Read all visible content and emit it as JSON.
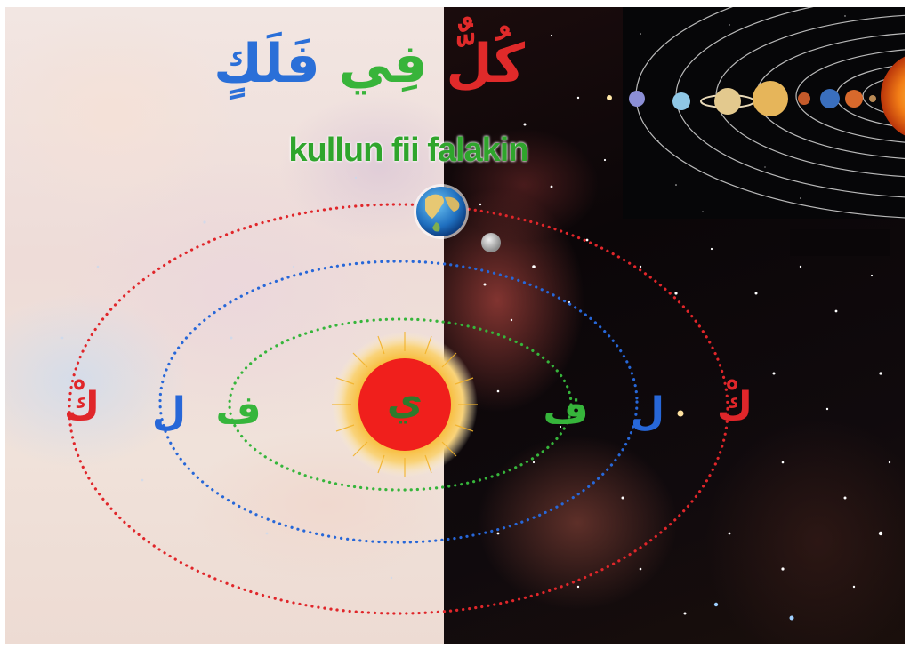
{
  "title_arabic": {
    "word_kul": "كُلٌّ",
    "word_fi": "فِي",
    "word_falak": "فَلَكٍ"
  },
  "title_latin": "kullun fii falakin",
  "orbit_letters": {
    "left_outer": "كْ",
    "left_middle": "ل",
    "left_inner": "ف",
    "center": "ي",
    "right_inner": "ف",
    "right_middle": "ل",
    "right_outer": "كْ"
  },
  "colors": {
    "outer_orbit": "#e0262a",
    "middle_orbit": "#2767d8",
    "inner_orbit": "#36b53b",
    "sun_core": "#f01f1c",
    "sun_corona": "#f2a11e",
    "center_letter": "#2f7a2c"
  },
  "icons": [
    "earth-icon",
    "moon-icon",
    "sun-icon",
    "solar-system-image"
  ]
}
